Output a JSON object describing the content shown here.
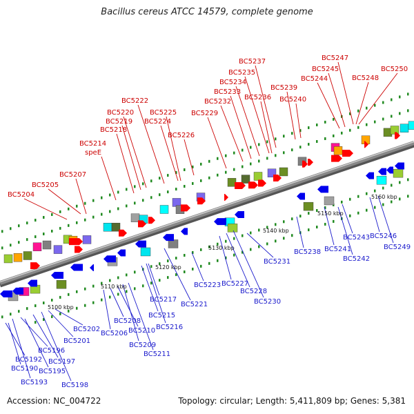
{
  "title": "Bacillus cereus ATCC 14579, complete genome",
  "accession": "Accession: NC_004722",
  "summary": "Topology: circular; Length: 5,411,809 bp; Genes: 5,381",
  "colors": {
    "forward_label": "#cc0000",
    "reverse_label": "#1a1acc",
    "forward_gene": "#ff0000",
    "reverse_gene": "#0000ee",
    "backbone": "#888888",
    "track_dots": "#228b22"
  },
  "scale_ticks": [
    "5100 kbp",
    "5110 kbp",
    "5120 kbp",
    "5130 kbp",
    "5140 kbp",
    "5150 kbp",
    "5160 kbp"
  ],
  "top_labels": [
    "BC5204",
    "BC5205",
    "BC5207",
    "speE",
    "BC5214",
    "BC5218",
    "BC5219",
    "BC5220",
    "BC5222",
    "BC5224",
    "BC5225",
    "BC5226",
    "BC5229",
    "BC5232",
    "BC5233",
    "BC5234",
    "BC5235",
    "BC5236",
    "BC5237",
    "BC5239",
    "BC5240",
    "BC5244",
    "BC5245",
    "BC5247",
    "BC5248",
    "BC5250"
  ],
  "bottom_labels": [
    "BC5192",
    "BC5190",
    "BC5196",
    "BC5193",
    "BC5195",
    "BC5197",
    "BC5198",
    "BC5201",
    "BC5202",
    "BC5206",
    "BC5208",
    "BC5210",
    "BC5209",
    "BC5211",
    "BC5215",
    "BC5216",
    "BC5217",
    "BC5221",
    "BC5223",
    "BC5227",
    "BC5228",
    "BC5230",
    "BC5231",
    "BC5238",
    "BC5241",
    "BC5242",
    "BC5243",
    "BC5246",
    "BC5249"
  ]
}
